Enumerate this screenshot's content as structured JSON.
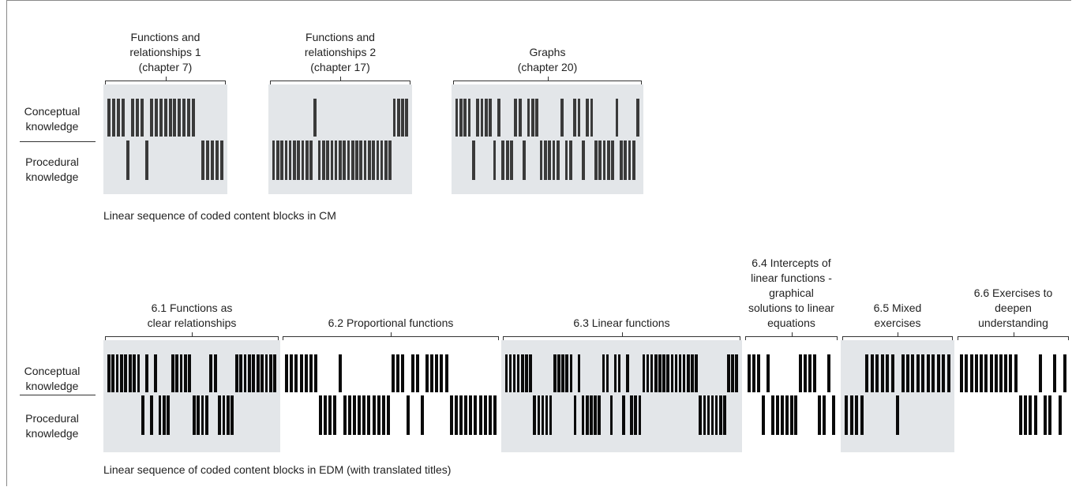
{
  "labels": {
    "conceptual": [
      "Conceptual",
      "knowledge"
    ],
    "procedural": [
      "Procedural",
      "knowledge"
    ]
  },
  "colors": {
    "panel_background": "#e3e6e9",
    "cm_bar": "#3a3a3a",
    "edm_bar": "#0a0a0a",
    "bracket": "#333333"
  },
  "cm": {
    "caption": "Linear sequence of coded content blocks in CM",
    "groups": [
      {
        "title": [
          "Functions and",
          "relationships 1",
          "(chapter 7)"
        ],
        "shaded": true,
        "pattern": "CCCCPCCCPCCCCCCCCCC PPPPP"
      },
      {
        "title": [
          "Functions and",
          "relationships 2",
          "(chapter 17)"
        ],
        "shaded": true,
        "pattern": "PPPPPPPPPPCPPPPPPPPPPPPPPPPPPCCCC"
      },
      {
        "title": [
          "Graphs",
          "(chapter 20)"
        ],
        "shaded": true,
        "pattern": "CCCCPCCCCPCPPPCCPCCCPPPPPCPPCCPCCPPPPPCPPPPC"
      }
    ]
  },
  "edm": {
    "caption": "Linear sequence of coded content blocks in EDM (with translated titles)",
    "groups": [
      {
        "title": [
          "6.1 Functions as",
          "clear relationships"
        ],
        "shaded": true,
        "pattern": "CCCCCCCCPCPCPPPCCCCCPPPPCCPPPPCCCCCCCCCC"
      },
      {
        "title": [
          "6.2 Proportional functions"
        ],
        "shaded": false,
        "pattern": "CCCCCCCPPPPCPPPPPPPPPPCCCPCCPCCCCCPPPPPPPPPP"
      },
      {
        "title": [
          "6.3 Linear functions"
        ],
        "shaded": true,
        "pattern": "CCCCCCCPPPPPCCCCCPCPPPPPCCPCCPCPPPCCCCCCCCCCCCCCPPPPPPPCCC"
      },
      {
        "title": [
          "6.4 Intercepts of",
          "linear functions -",
          "graphical",
          "solutions to linear",
          "equations"
        ],
        "shaded": false,
        "pattern": "CCCPCPPPPPPCCCCPPCP"
      },
      {
        "title": [
          "6.5 Mixed",
          "exercises"
        ],
        "shaded": true,
        "pattern": "PPPPCCCCCCPCCCCCCCCCC"
      },
      {
        "title": [
          "6.6 Exercises to",
          "deepen",
          "understanding"
        ],
        "shaded": false,
        "pattern": "CCCCCCCCCCCCPPPPCPPCPC"
      }
    ]
  }
}
